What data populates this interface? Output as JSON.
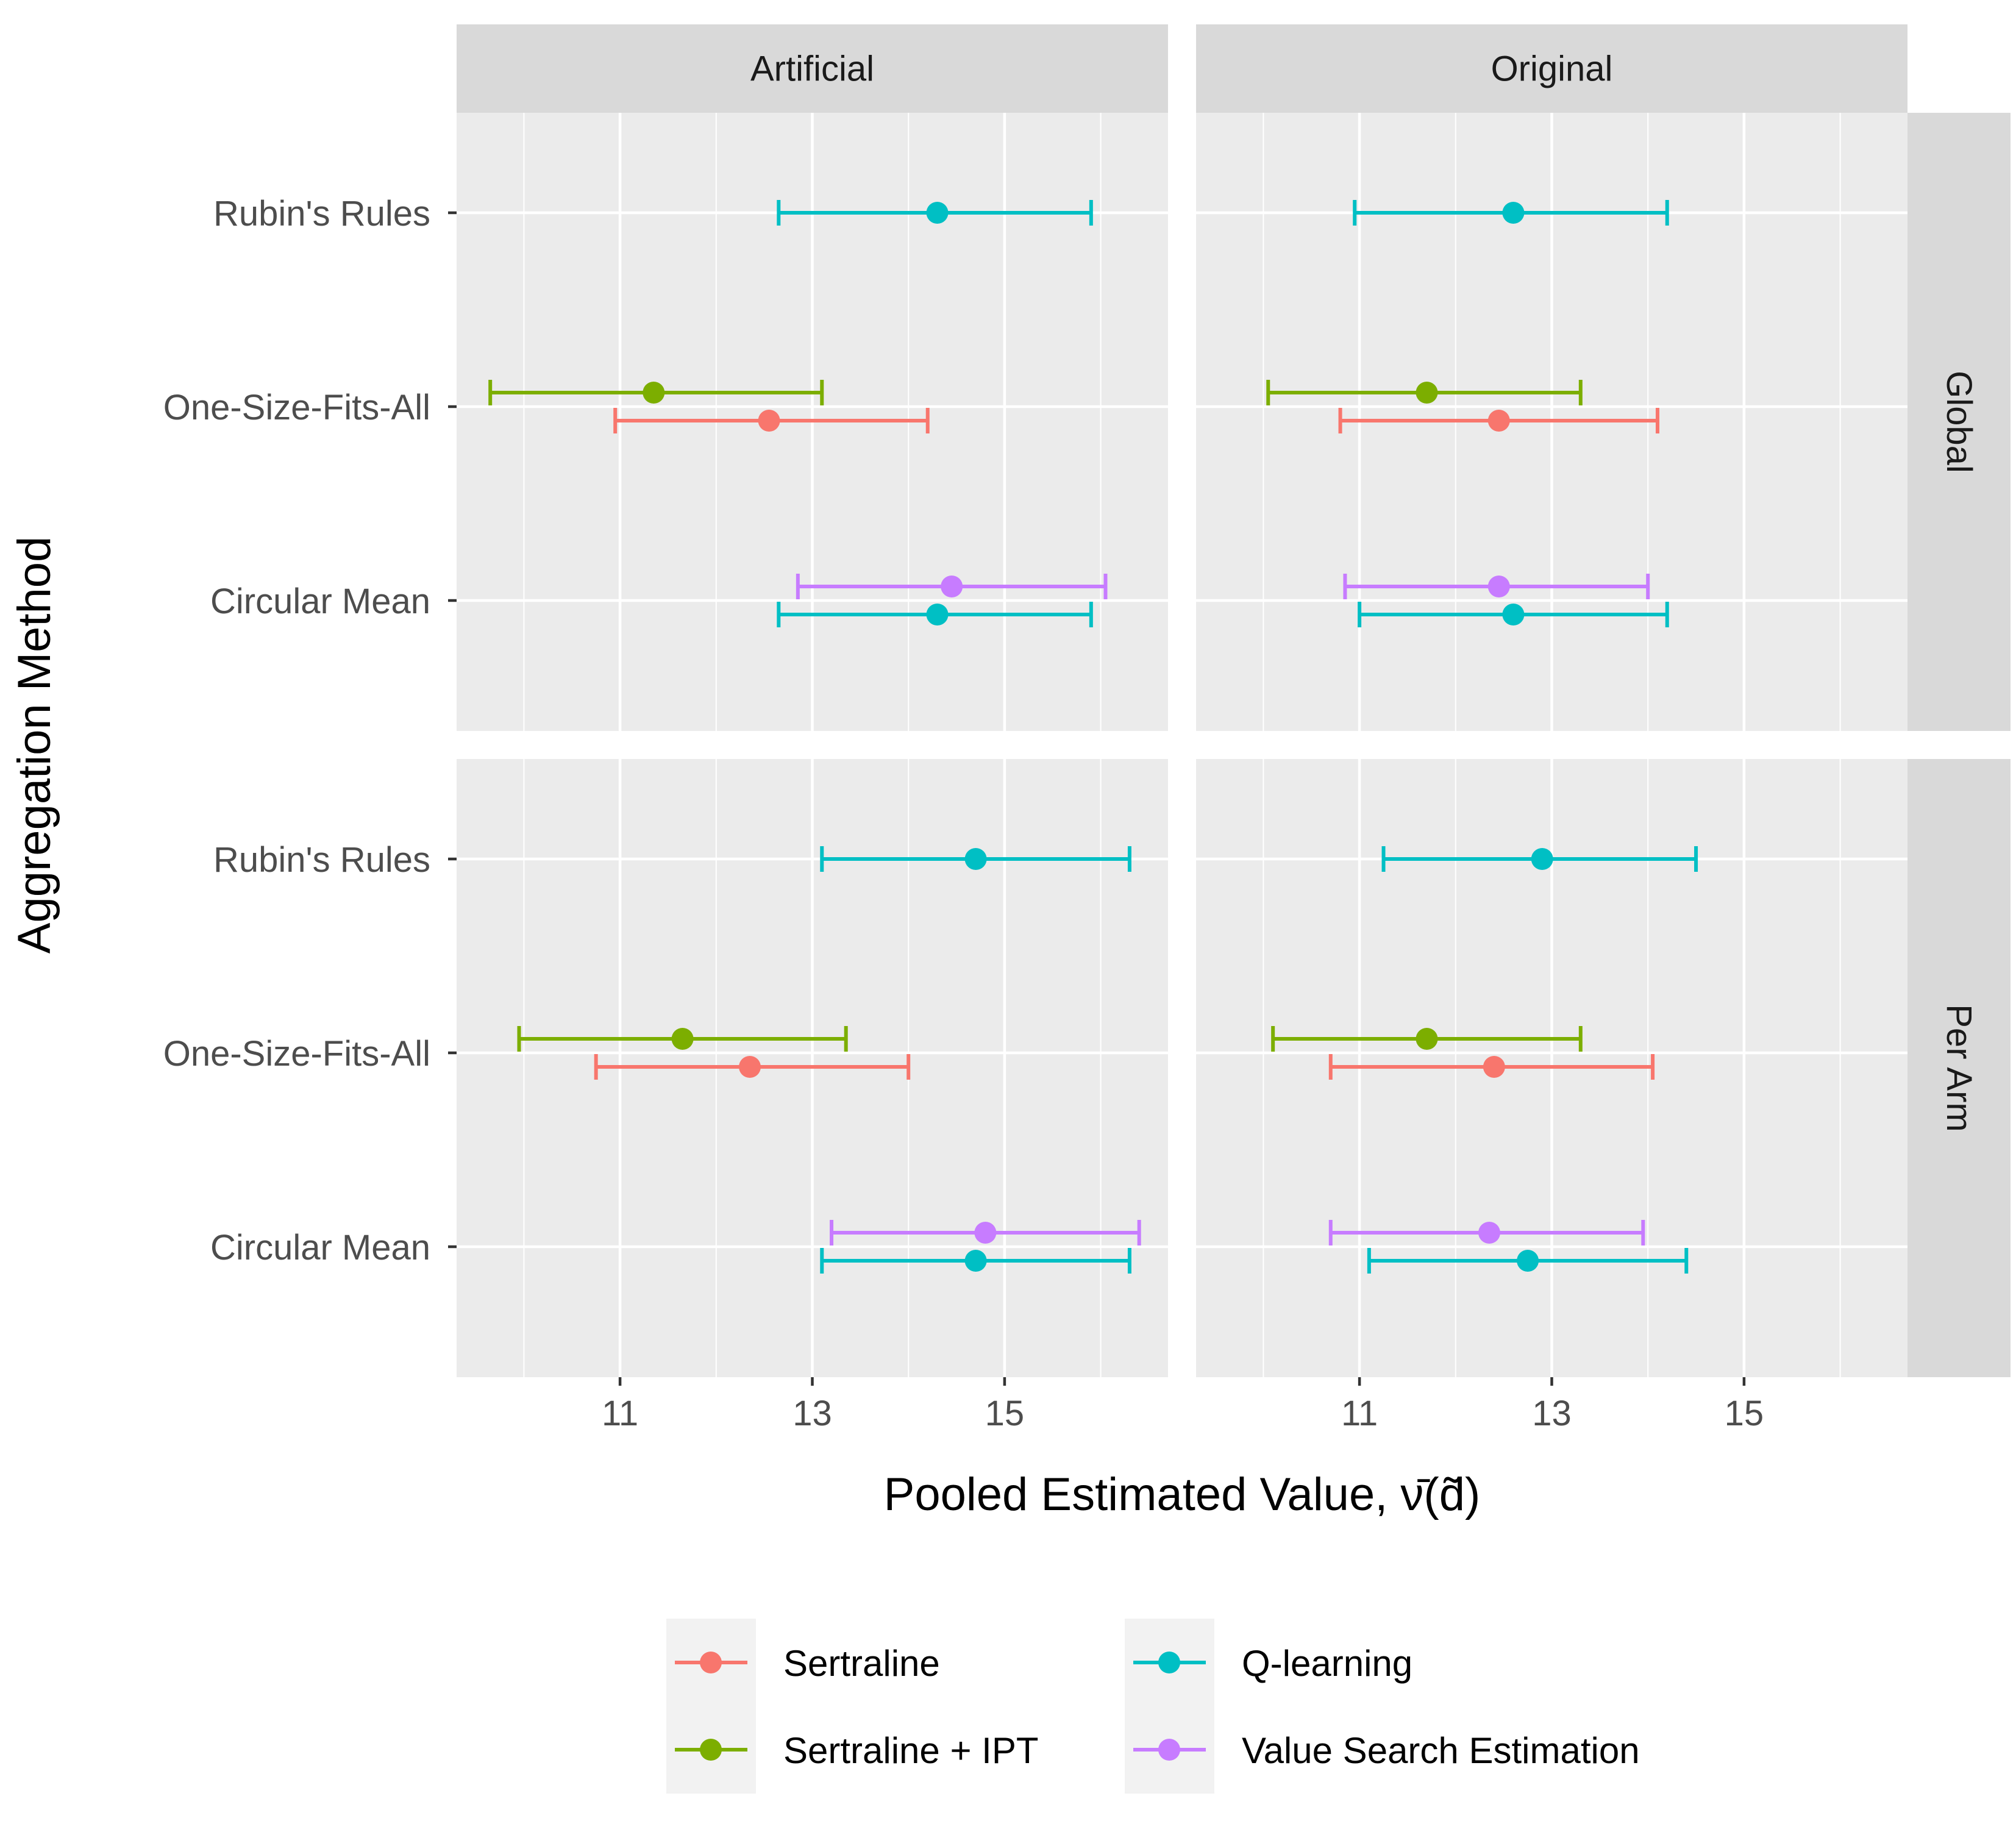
{
  "chart_data": {
    "type": "dot-errorbar",
    "xlabel": "Pooled Estimated Value, ν̄(d̃)",
    "ylabel": "Aggregation Method",
    "xlim": [
      9.3,
      16.7
    ],
    "xticks": [
      11,
      13,
      15
    ],
    "x_tick_labels": [
      "11",
      "13",
      "15"
    ],
    "y_categories": [
      "Rubin's Rules",
      "One-Size-Fits-All",
      "Circular Mean"
    ],
    "facet_columns": [
      "Artificial",
      "Original"
    ],
    "facet_rows": [
      "Global",
      "Per Arm"
    ],
    "grid": true,
    "legend_position": "bottom",
    "series": [
      {
        "name": "Sertraline",
        "color": "#F8766D"
      },
      {
        "name": "Sertraline + IPT",
        "color": "#7CAE00"
      },
      {
        "name": "Q-learning",
        "color": "#00BFC4"
      },
      {
        "name": "Value Search Estimation",
        "color": "#C77CFF"
      }
    ],
    "points": [
      {
        "column": "Artificial",
        "row": "Global",
        "method": "Rubin's Rules",
        "series": "Q-learning",
        "estimate": 14.3,
        "lower": 12.65,
        "upper": 15.9
      },
      {
        "column": "Artificial",
        "row": "Global",
        "method": "One-Size-Fits-All",
        "series": "Sertraline + IPT",
        "estimate": 11.35,
        "lower": 9.65,
        "upper": 13.1
      },
      {
        "column": "Artificial",
        "row": "Global",
        "method": "One-Size-Fits-All",
        "series": "Sertraline",
        "estimate": 12.55,
        "lower": 10.95,
        "upper": 14.2
      },
      {
        "column": "Artificial",
        "row": "Global",
        "method": "Circular Mean",
        "series": "Value Search Estimation",
        "estimate": 14.45,
        "lower": 12.85,
        "upper": 16.05
      },
      {
        "column": "Artificial",
        "row": "Global",
        "method": "Circular Mean",
        "series": "Q-learning",
        "estimate": 14.3,
        "lower": 12.65,
        "upper": 15.9
      },
      {
        "column": "Original",
        "row": "Global",
        "method": "Rubin's Rules",
        "series": "Q-learning",
        "estimate": 12.6,
        "lower": 10.95,
        "upper": 14.2
      },
      {
        "column": "Original",
        "row": "Global",
        "method": "One-Size-Fits-All",
        "series": "Sertraline + IPT",
        "estimate": 11.7,
        "lower": 10.05,
        "upper": 13.3
      },
      {
        "column": "Original",
        "row": "Global",
        "method": "One-Size-Fits-All",
        "series": "Sertraline",
        "estimate": 12.45,
        "lower": 10.8,
        "upper": 14.1
      },
      {
        "column": "Original",
        "row": "Global",
        "method": "Circular Mean",
        "series": "Value Search Estimation",
        "estimate": 12.45,
        "lower": 10.85,
        "upper": 14.0
      },
      {
        "column": "Original",
        "row": "Global",
        "method": "Circular Mean",
        "series": "Q-learning",
        "estimate": 12.6,
        "lower": 11.0,
        "upper": 14.2
      },
      {
        "column": "Artificial",
        "row": "Per Arm",
        "method": "Rubin's Rules",
        "series": "Q-learning",
        "estimate": 14.7,
        "lower": 13.1,
        "upper": 16.3
      },
      {
        "column": "Artificial",
        "row": "Per Arm",
        "method": "One-Size-Fits-All",
        "series": "Sertraline + IPT",
        "estimate": 11.65,
        "lower": 9.95,
        "upper": 13.35
      },
      {
        "column": "Artificial",
        "row": "Per Arm",
        "method": "One-Size-Fits-All",
        "series": "Sertraline",
        "estimate": 12.35,
        "lower": 10.75,
        "upper": 14.0
      },
      {
        "column": "Artificial",
        "row": "Per Arm",
        "method": "Circular Mean",
        "series": "Value Search Estimation",
        "estimate": 14.8,
        "lower": 13.2,
        "upper": 16.4
      },
      {
        "column": "Artificial",
        "row": "Per Arm",
        "method": "Circular Mean",
        "series": "Q-learning",
        "estimate": 14.7,
        "lower": 13.1,
        "upper": 16.3
      },
      {
        "column": "Original",
        "row": "Per Arm",
        "method": "Rubin's Rules",
        "series": "Q-learning",
        "estimate": 12.9,
        "lower": 11.25,
        "upper": 14.5
      },
      {
        "column": "Original",
        "row": "Per Arm",
        "method": "One-Size-Fits-All",
        "series": "Sertraline + IPT",
        "estimate": 11.7,
        "lower": 10.1,
        "upper": 13.3
      },
      {
        "column": "Original",
        "row": "Per Arm",
        "method": "One-Size-Fits-All",
        "series": "Sertraline",
        "estimate": 12.4,
        "lower": 10.7,
        "upper": 14.05
      },
      {
        "column": "Original",
        "row": "Per Arm",
        "method": "Circular Mean",
        "series": "Value Search Estimation",
        "estimate": 12.35,
        "lower": 10.7,
        "upper": 13.95
      },
      {
        "column": "Original",
        "row": "Per Arm",
        "method": "Circular Mean",
        "series": "Q-learning",
        "estimate": 12.75,
        "lower": 11.1,
        "upper": 14.4
      }
    ]
  }
}
